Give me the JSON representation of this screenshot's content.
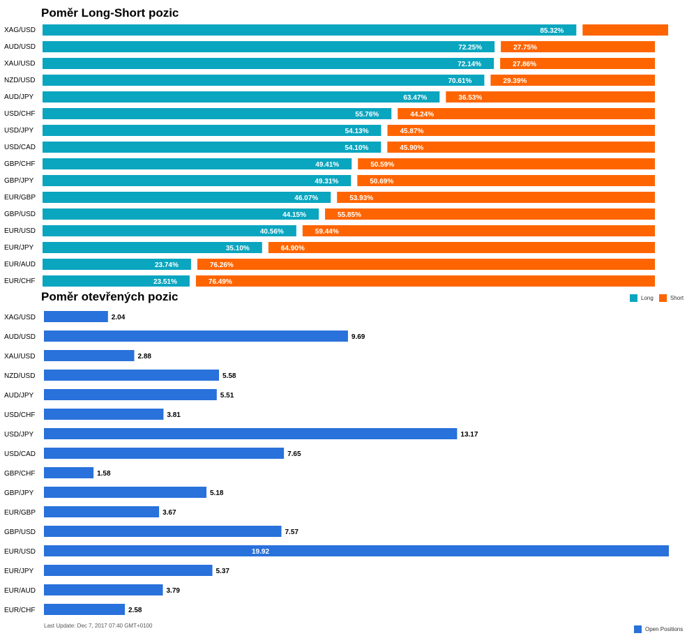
{
  "colors": {
    "long": "#0aa5bf",
    "short": "#fe6501",
    "open": "#2971db"
  },
  "legend": {
    "long": "Long",
    "short": "Short",
    "open": "Open Positions"
  },
  "footer": "Last Update: Dec 7, 2017 07:40 GMT+0100",
  "chart_data": [
    {
      "type": "bar",
      "title": "Poměr Long-Short pozic",
      "stacked": true,
      "orientation": "horizontal",
      "categories": [
        "XAG/USD",
        "AUD/USD",
        "XAU/USD",
        "NZD/USD",
        "AUD/JPY",
        "USD/CHF",
        "USD/JPY",
        "USD/CAD",
        "GBP/CHF",
        "GBP/JPY",
        "EUR/GBP",
        "GBP/USD",
        "EUR/USD",
        "EUR/JPY",
        "EUR/AUD",
        "EUR/CHF"
      ],
      "series": [
        {
          "name": "Long",
          "values": [
            85.32,
            72.25,
            72.14,
            70.61,
            63.47,
            55.76,
            54.13,
            54.1,
            49.41,
            49.31,
            46.07,
            44.15,
            40.56,
            35.1,
            23.74,
            23.51
          ]
        },
        {
          "name": "Short",
          "values": [
            14.68,
            27.75,
            27.86,
            29.39,
            36.53,
            44.24,
            45.87,
            45.9,
            50.59,
            50.69,
            53.93,
            55.85,
            59.44,
            64.9,
            76.26,
            76.49
          ]
        }
      ],
      "labels": {
        "long": [
          "85.32%",
          "72.25%",
          "72.14%",
          "70.61%",
          "63.47%",
          "55.76%",
          "54.13%",
          "54.10%",
          "49.41%",
          "49.31%",
          "46.07%",
          "44.15%",
          "40.56%",
          "35.10%",
          "23.74%",
          "23.51%"
        ],
        "short": [
          "",
          "27.75%",
          "27.86%",
          "29.39%",
          "36.53%",
          "44.24%",
          "45.87%",
          "45.90%",
          "50.59%",
          "50.69%",
          "53.93%",
          "55.85%",
          "59.44%",
          "64.90%",
          "76.26%",
          "76.49%"
        ]
      },
      "legend_position": "bottom-right",
      "grid": false
    },
    {
      "type": "bar",
      "title": "Poměr otevřených pozic",
      "orientation": "horizontal",
      "categories": [
        "XAG/USD",
        "AUD/USD",
        "XAU/USD",
        "NZD/USD",
        "AUD/JPY",
        "USD/CHF",
        "USD/JPY",
        "USD/CAD",
        "GBP/CHF",
        "GBP/JPY",
        "EUR/GBP",
        "GBP/USD",
        "EUR/USD",
        "EUR/JPY",
        "EUR/AUD",
        "EUR/CHF"
      ],
      "series": [
        {
          "name": "Open Positions",
          "values": [
            2.04,
            9.69,
            2.88,
            5.58,
            5.51,
            3.81,
            13.17,
            7.65,
            1.58,
            5.18,
            3.67,
            7.57,
            19.92,
            5.37,
            3.79,
            2.58
          ]
        }
      ],
      "labels": [
        "2.04",
        "9.69",
        "2.88",
        "5.58",
        "5.51",
        "3.81",
        "13.17",
        "7.65",
        "1.58",
        "5.18",
        "3.67",
        "7.57",
        "19.92",
        "5.37",
        "3.79",
        "2.58"
      ],
      "xlim": [
        0,
        19.92
      ],
      "legend_position": "bottom-right",
      "grid": false
    }
  ]
}
